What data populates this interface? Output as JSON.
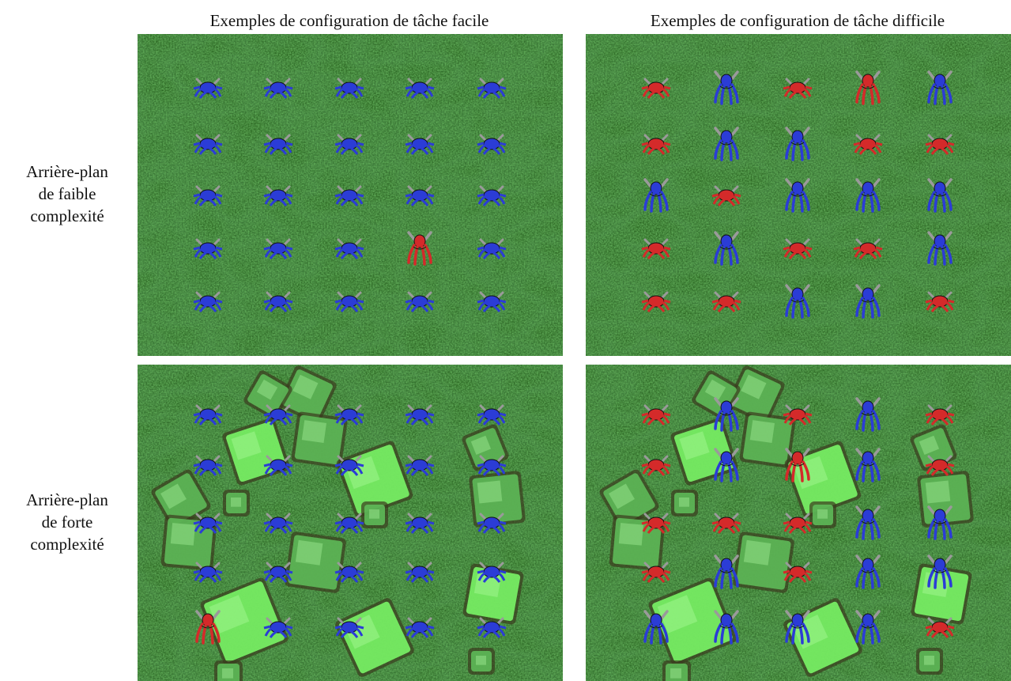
{
  "columns": {
    "easy": "Exemples de configuration de tâche facile",
    "hard": "Exemples de configuration de tâche difficile"
  },
  "rows": {
    "low": "Arrière-plan\nde faible\ncomplexité",
    "high": "Arrière-plan\nde forte\ncomplexité"
  },
  "colors": {
    "grass_dark": "#1f4d18",
    "grass_light": "#4f9c3a",
    "distractor_blue": "#2b3cd6",
    "target_red": "#d42a2a",
    "cube_green": "#5fd060"
  },
  "panels": [
    {
      "id": "easy-low",
      "grid": [
        [
          "b",
          "b",
          "b",
          "b",
          "b"
        ],
        [
          "b",
          "b",
          "b",
          "b",
          "b"
        ],
        [
          "b",
          "b",
          "b",
          "b",
          "b"
        ],
        [
          "b",
          "b",
          "b",
          "R",
          "b"
        ],
        [
          "b",
          "b",
          "b",
          "b",
          "b"
        ]
      ],
      "clutter": false
    },
    {
      "id": "hard-low",
      "grid": [
        [
          "r",
          "B",
          "r",
          "R",
          "B"
        ],
        [
          "r",
          "B",
          "B",
          "r",
          "r"
        ],
        [
          "B",
          "r",
          "B",
          "B",
          "B"
        ],
        [
          "r",
          "B",
          "r",
          "r",
          "B"
        ],
        [
          "r",
          "r",
          "B",
          "B",
          "r"
        ]
      ],
      "clutter": false
    },
    {
      "id": "easy-high",
      "grid": [
        [
          "b",
          "b",
          "b",
          "b",
          "b"
        ],
        [
          "b",
          "b",
          "b",
          "b",
          "b"
        ],
        [
          "b",
          "b",
          "b",
          "b",
          "b"
        ],
        [
          "b",
          "b",
          "b",
          "b",
          "b"
        ],
        [
          "R",
          "b",
          "b",
          "b",
          "b"
        ]
      ],
      "clutter": true
    },
    {
      "id": "hard-high",
      "grid": [
        [
          "r",
          "B",
          "r",
          "B",
          "r"
        ],
        [
          "r",
          "B",
          "R",
          "B",
          "r"
        ],
        [
          "r",
          "r",
          "r",
          "B",
          "B"
        ],
        [
          "r",
          "B",
          "r",
          "B",
          "B"
        ],
        [
          "B",
          "B",
          "B",
          "B",
          "r"
        ]
      ],
      "clutter": true
    }
  ]
}
